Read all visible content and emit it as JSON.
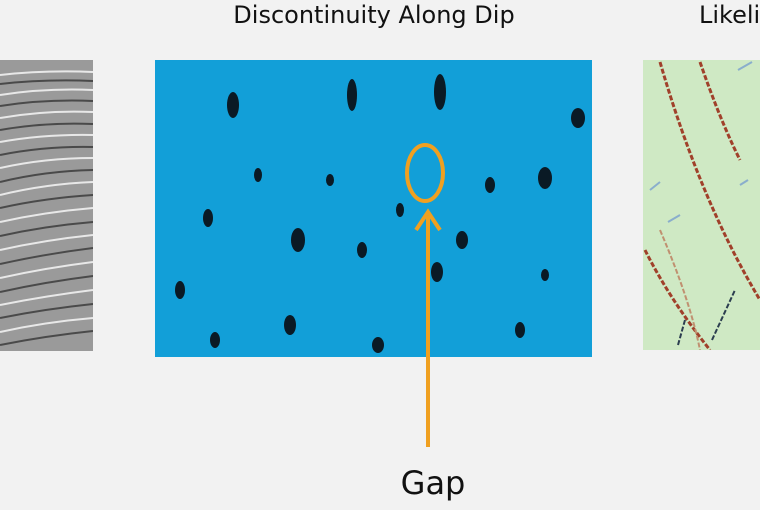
{
  "panels": [
    {
      "title": "Discontinuity Along Dip"
    },
    {
      "title": "Likelil"
    }
  ],
  "annotation": {
    "label": "Gap"
  }
}
